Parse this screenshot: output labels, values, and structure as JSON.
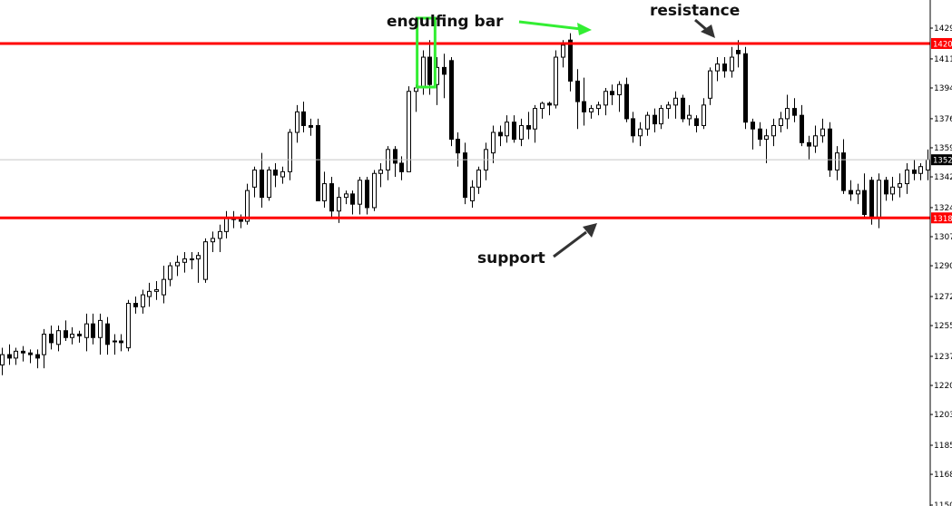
{
  "chart_data": {
    "type": "candlestick",
    "y_ticks": [
      "1429",
      "1411",
      "1394",
      "1376",
      "1359",
      "1342",
      "1324",
      "1307",
      "1290",
      "1272",
      "1255",
      "1237",
      "1220",
      "1203",
      "1185",
      "1168",
      "1150"
    ],
    "ylim": [
      1150,
      1440
    ],
    "grid": false,
    "current_price": {
      "label": "1352",
      "value": 1352
    },
    "levels": [
      {
        "name": "resistance",
        "label": "1420",
        "value": 1420,
        "color": "#ff0000"
      },
      {
        "name": "support",
        "label": "1318",
        "value": 1318,
        "color": "#ff0000"
      }
    ],
    "candles": [
      [
        1232,
        1242,
        1226,
        1238
      ],
      [
        1238,
        1244,
        1232,
        1236
      ],
      [
        1236,
        1242,
        1232,
        1240
      ],
      [
        1240,
        1243,
        1234,
        1239
      ],
      [
        1239,
        1241,
        1233,
        1238
      ],
      [
        1238,
        1241,
        1230,
        1236
      ],
      [
        1238,
        1253,
        1230,
        1250
      ],
      [
        1250,
        1255,
        1241,
        1245
      ],
      [
        1244,
        1255,
        1240,
        1252
      ],
      [
        1252,
        1258,
        1246,
        1248
      ],
      [
        1248,
        1254,
        1244,
        1250
      ],
      [
        1250,
        1252,
        1245,
        1249
      ],
      [
        1248,
        1262,
        1240,
        1256
      ],
      [
        1256,
        1262,
        1244,
        1248
      ],
      [
        1248,
        1262,
        1238,
        1258
      ],
      [
        1256,
        1260,
        1238,
        1244
      ],
      [
        1246,
        1250,
        1238,
        1246
      ],
      [
        1246,
        1250,
        1240,
        1245
      ],
      [
        1242,
        1270,
        1240,
        1268
      ],
      [
        1268,
        1272,
        1262,
        1266
      ],
      [
        1266,
        1276,
        1262,
        1273
      ],
      [
        1272,
        1280,
        1266,
        1275
      ],
      [
        1275,
        1281,
        1270,
        1276
      ],
      [
        1273,
        1290,
        1268,
        1282
      ],
      [
        1282,
        1292,
        1278,
        1290
      ],
      [
        1290,
        1296,
        1284,
        1292
      ],
      [
        1292,
        1298,
        1286,
        1294
      ],
      [
        1294,
        1298,
        1288,
        1294
      ],
      [
        1294,
        1298,
        1280,
        1296
      ],
      [
        1282,
        1306,
        1280,
        1304
      ],
      [
        1304,
        1310,
        1298,
        1306
      ],
      [
        1306,
        1314,
        1298,
        1310
      ],
      [
        1310,
        1322,
        1306,
        1318
      ],
      [
        1318,
        1322,
        1312,
        1317
      ],
      [
        1317,
        1320,
        1312,
        1316
      ],
      [
        1316,
        1338,
        1314,
        1334
      ],
      [
        1336,
        1348,
        1330,
        1346
      ],
      [
        1346,
        1356,
        1324,
        1330
      ],
      [
        1330,
        1348,
        1328,
        1346
      ],
      [
        1346,
        1350,
        1336,
        1343
      ],
      [
        1342,
        1348,
        1338,
        1345
      ],
      [
        1345,
        1370,
        1340,
        1368
      ],
      [
        1368,
        1384,
        1362,
        1380
      ],
      [
        1380,
        1386,
        1368,
        1372
      ],
      [
        1372,
        1376,
        1366,
        1371
      ],
      [
        1372,
        1376,
        1328,
        1328
      ],
      [
        1328,
        1345,
        1324,
        1338
      ],
      [
        1338,
        1342,
        1318,
        1322
      ],
      [
        1322,
        1336,
        1315,
        1330
      ],
      [
        1330,
        1334,
        1326,
        1332
      ],
      [
        1332,
        1334,
        1320,
        1326
      ],
      [
        1326,
        1342,
        1320,
        1340
      ],
      [
        1340,
        1342,
        1320,
        1324
      ],
      [
        1324,
        1346,
        1322,
        1344
      ],
      [
        1344,
        1350,
        1336,
        1346
      ],
      [
        1346,
        1360,
        1340,
        1358
      ],
      [
        1358,
        1360,
        1342,
        1350
      ],
      [
        1350,
        1354,
        1340,
        1345
      ],
      [
        1345,
        1395,
        1345,
        1392
      ],
      [
        1392,
        1396,
        1380,
        1394
      ],
      [
        1394,
        1416,
        1390,
        1412
      ],
      [
        1412,
        1422,
        1390,
        1396
      ],
      [
        1396,
        1412,
        1384,
        1406
      ],
      [
        1406,
        1414,
        1388,
        1402
      ],
      [
        1410,
        1412,
        1360,
        1364
      ],
      [
        1364,
        1368,
        1348,
        1356
      ],
      [
        1356,
        1362,
        1326,
        1330
      ],
      [
        1328,
        1340,
        1324,
        1336
      ],
      [
        1336,
        1348,
        1332,
        1346
      ],
      [
        1346,
        1362,
        1340,
        1358
      ],
      [
        1356,
        1372,
        1350,
        1368
      ],
      [
        1368,
        1372,
        1360,
        1366
      ],
      [
        1366,
        1378,
        1362,
        1374
      ],
      [
        1374,
        1378,
        1362,
        1364
      ],
      [
        1364,
        1376,
        1360,
        1372
      ],
      [
        1372,
        1380,
        1364,
        1370
      ],
      [
        1370,
        1384,
        1362,
        1382
      ],
      [
        1382,
        1386,
        1376,
        1385
      ],
      [
        1385,
        1386,
        1378,
        1384
      ],
      [
        1384,
        1416,
        1382,
        1412
      ],
      [
        1412,
        1422,
        1406,
        1419
      ],
      [
        1422,
        1426,
        1392,
        1398
      ],
      [
        1398,
        1405,
        1370,
        1386
      ],
      [
        1386,
        1400,
        1372,
        1380
      ],
      [
        1380,
        1384,
        1376,
        1382
      ],
      [
        1382,
        1386,
        1378,
        1384
      ],
      [
        1384,
        1394,
        1378,
        1392
      ],
      [
        1392,
        1396,
        1384,
        1390
      ],
      [
        1390,
        1398,
        1380,
        1396
      ],
      [
        1396,
        1400,
        1374,
        1376
      ],
      [
        1376,
        1380,
        1362,
        1366
      ],
      [
        1366,
        1374,
        1360,
        1370
      ],
      [
        1370,
        1380,
        1366,
        1378
      ],
      [
        1378,
        1382,
        1368,
        1373
      ],
      [
        1373,
        1384,
        1370,
        1382
      ],
      [
        1382,
        1386,
        1376,
        1384
      ],
      [
        1384,
        1392,
        1376,
        1388
      ],
      [
        1388,
        1390,
        1374,
        1376
      ],
      [
        1376,
        1384,
        1372,
        1378
      ],
      [
        1376,
        1378,
        1368,
        1372
      ],
      [
        1372,
        1388,
        1370,
        1384
      ],
      [
        1388,
        1406,
        1384,
        1404
      ],
      [
        1404,
        1412,
        1398,
        1408
      ],
      [
        1408,
        1412,
        1400,
        1404
      ],
      [
        1404,
        1418,
        1400,
        1412
      ],
      [
        1416,
        1422,
        1406,
        1414
      ],
      [
        1414,
        1418,
        1370,
        1374
      ],
      [
        1374,
        1376,
        1358,
        1370
      ],
      [
        1370,
        1374,
        1360,
        1364
      ],
      [
        1364,
        1370,
        1350,
        1366
      ],
      [
        1366,
        1376,
        1360,
        1372
      ],
      [
        1372,
        1380,
        1368,
        1376
      ],
      [
        1376,
        1390,
        1370,
        1382
      ],
      [
        1382,
        1388,
        1374,
        1378
      ],
      [
        1378,
        1384,
        1360,
        1362
      ],
      [
        1362,
        1366,
        1352,
        1360
      ],
      [
        1360,
        1372,
        1356,
        1366
      ],
      [
        1366,
        1376,
        1362,
        1370
      ],
      [
        1370,
        1374,
        1342,
        1346
      ],
      [
        1346,
        1360,
        1340,
        1356
      ],
      [
        1356,
        1364,
        1332,
        1334
      ],
      [
        1334,
        1340,
        1328,
        1332
      ],
      [
        1332,
        1338,
        1326,
        1334
      ],
      [
        1334,
        1344,
        1318,
        1320
      ],
      [
        1340,
        1342,
        1314,
        1318
      ],
      [
        1318,
        1344,
        1312,
        1340
      ],
      [
        1340,
        1342,
        1328,
        1332
      ],
      [
        1332,
        1342,
        1328,
        1336
      ],
      [
        1336,
        1344,
        1330,
        1338
      ],
      [
        1338,
        1350,
        1332,
        1346
      ],
      [
        1346,
        1352,
        1340,
        1344
      ],
      [
        1344,
        1350,
        1340,
        1348
      ],
      [
        1346,
        1358,
        1340,
        1352
      ]
    ],
    "annotations": [
      {
        "text": "engulfing bar",
        "target": "engulfing-candles"
      },
      {
        "text": "resistance",
        "target": "resistance-line"
      },
      {
        "text": "support",
        "target": "support-line"
      }
    ]
  }
}
